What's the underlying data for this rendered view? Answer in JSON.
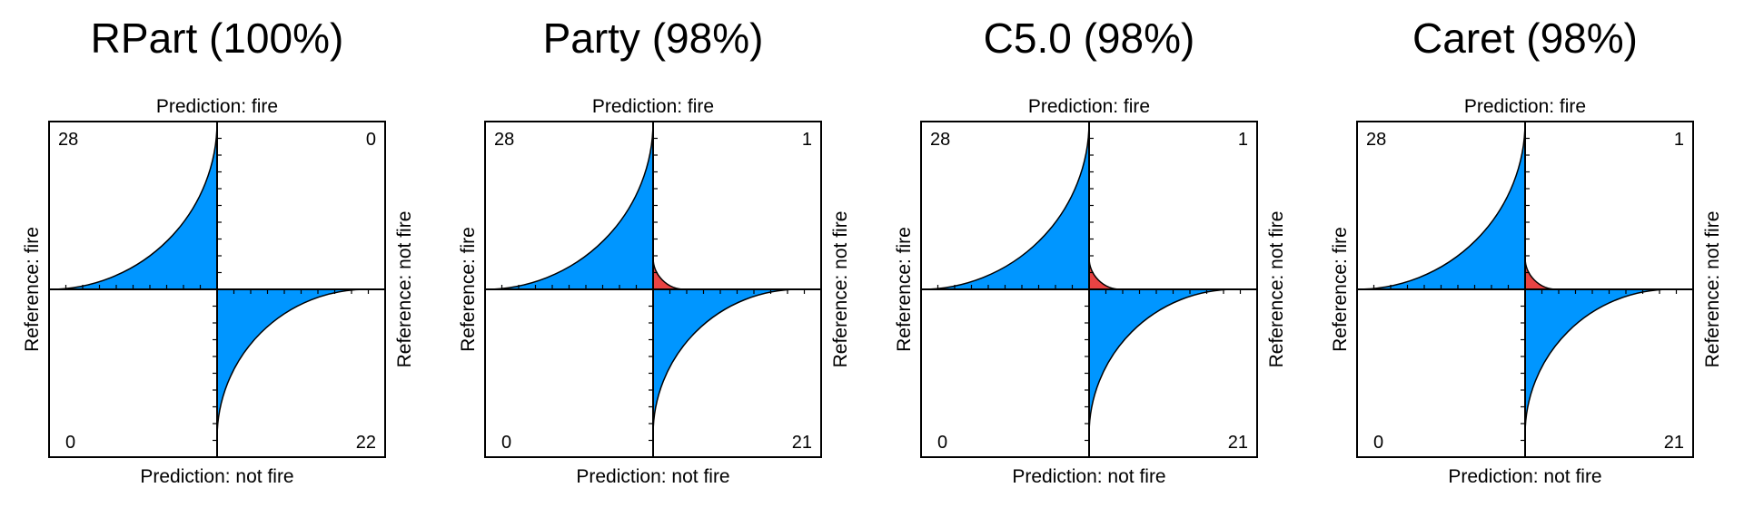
{
  "colors": {
    "correct": "#0096FF",
    "incorrect": "#E84343",
    "frame": "#000000",
    "background": "#FFFFFF"
  },
  "chart_data": [
    {
      "type": "fourfold",
      "title": "RPart (100%)",
      "top_label": "Prediction: fire",
      "bottom_label": "Prediction: not fire",
      "left_label": "Reference: fire",
      "right_label": "Reference: not fire",
      "cells": {
        "top_left": 28,
        "top_right": 0,
        "bottom_left": 0,
        "bottom_right": 22
      }
    },
    {
      "type": "fourfold",
      "title": "Party (98%)",
      "top_label": "Prediction: fire",
      "bottom_label": "Prediction: not fire",
      "left_label": "Reference: fire",
      "right_label": "Reference: not fire",
      "cells": {
        "top_left": 28,
        "top_right": 1,
        "bottom_left": 0,
        "bottom_right": 21
      }
    },
    {
      "type": "fourfold",
      "title": "C5.0 (98%)",
      "top_label": "Prediction: fire",
      "bottom_label": "Prediction: not fire",
      "left_label": "Reference: fire",
      "right_label": "Reference: not fire",
      "cells": {
        "top_left": 28,
        "top_right": 1,
        "bottom_left": 0,
        "bottom_right": 21
      }
    },
    {
      "type": "fourfold",
      "title": "Caret (98%)",
      "top_label": "Prediction: fire",
      "bottom_label": "Prediction: not fire",
      "left_label": "Reference: fire",
      "right_label": "Reference: not fire",
      "cells": {
        "top_left": 28,
        "top_right": 1,
        "bottom_left": 0,
        "bottom_right": 21
      }
    }
  ]
}
